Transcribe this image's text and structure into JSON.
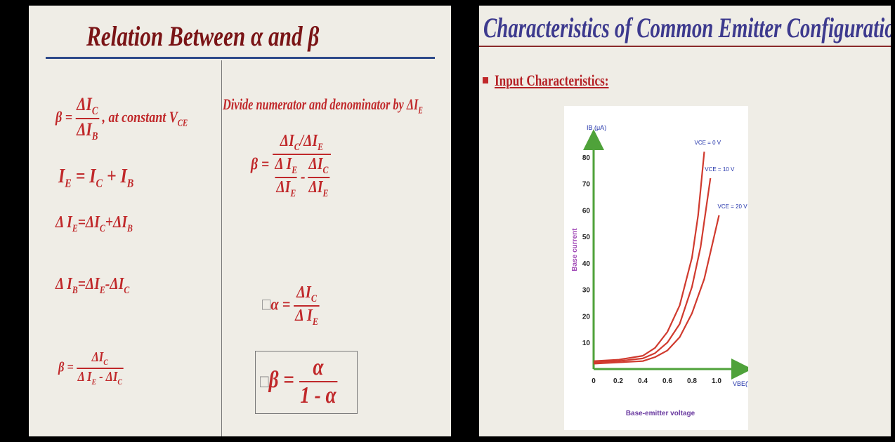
{
  "left_slide": {
    "title": "Relation Between α and β",
    "eq1": {
      "beta": "β =",
      "num": "ΔI",
      "num_sub": "C",
      "den": "ΔI",
      "den_sub": "B",
      "tail": ", at constant V",
      "tail_sub": "CE"
    },
    "eq2": {
      "a": "I",
      "a_sub": "E",
      "b": "= I",
      "b_sub": "C",
      "c": "+ I",
      "c_sub": "B"
    },
    "eq3": {
      "a": "Δ I",
      "a_sub": "E",
      "b": "=ΔI",
      "b_sub": "C",
      "c": "+ΔI",
      "c_sub": "B"
    },
    "eq4": {
      "a": "Δ I",
      "a_sub": "B",
      "b": "=ΔI",
      "b_sub": "E",
      "c": "-ΔI",
      "c_sub": "C"
    },
    "eq5": {
      "beta": "β =",
      "num": "ΔI",
      "num_sub": "C",
      "den_a": "Δ I",
      "den_a_sub": "E",
      "den_b": " - ΔI",
      "den_b_sub": "C"
    },
    "divide_note": {
      "text": "Divide numerator and denominator by ΔI",
      "sub": "E"
    },
    "eq6": {
      "beta": "β =",
      "n1": "ΔI",
      "n1_sub": "C",
      "n2": "/ΔI",
      "n2_sub": "E",
      "d1": "Δ I",
      "d1_sub": "E",
      "d2": "ΔI",
      "d2_sub": "E",
      "d3": "ΔI",
      "d3_sub": "C",
      "d4": "ΔI",
      "d4_sub": "E",
      "minus": "-"
    },
    "eq7": {
      "box": "□",
      "alpha": "α =",
      "num": "ΔI",
      "num_sub": "C",
      "den": "Δ I",
      "den_sub": "E"
    },
    "eq8": {
      "box": "□",
      "beta": "β =",
      "num": "α",
      "den": "1 - α"
    }
  },
  "right_slide": {
    "title": "Characteristics of Common Emitter Configuration",
    "section": "Input Characteristics:"
  },
  "chart_data": {
    "type": "line",
    "title": "",
    "xlabel": "Base-emitter voltage",
    "ylabel": "Base current",
    "x_axis_label": "VBE(V)",
    "y_axis_label": "IB (μA)",
    "xlim": [
      0,
      1.2
    ],
    "ylim": [
      0,
      90
    ],
    "x_ticks": [
      "0",
      "0.2",
      "0.4",
      "0.6",
      "0.8",
      "1.0"
    ],
    "y_ticks": [
      "10",
      "20",
      "30",
      "40",
      "50",
      "60",
      "70",
      "80"
    ],
    "series": [
      {
        "name": "VCE = 0 V",
        "x": [
          0,
          0.2,
          0.4,
          0.5,
          0.6,
          0.7,
          0.8,
          0.85,
          0.9
        ],
        "y": [
          3,
          3.5,
          5,
          8,
          14,
          24,
          42,
          58,
          82
        ]
      },
      {
        "name": "VCE = 10 V",
        "x": [
          0,
          0.2,
          0.4,
          0.5,
          0.6,
          0.7,
          0.8,
          0.87,
          0.95
        ],
        "y": [
          2.5,
          3,
          4,
          6,
          10,
          17,
          31,
          46,
          72
        ]
      },
      {
        "name": "VCE = 20 V",
        "x": [
          0,
          0.2,
          0.4,
          0.5,
          0.6,
          0.7,
          0.8,
          0.9,
          1.02
        ],
        "y": [
          2,
          2.5,
          3,
          4.5,
          7,
          12,
          21,
          34,
          58
        ]
      }
    ],
    "colors": {
      "curve": "#d03a2e",
      "axis": "#4fa23a",
      "ylabel": "#a14ab7",
      "xlabel": "#6a3aa0",
      "series_label": "#2233aa"
    }
  }
}
